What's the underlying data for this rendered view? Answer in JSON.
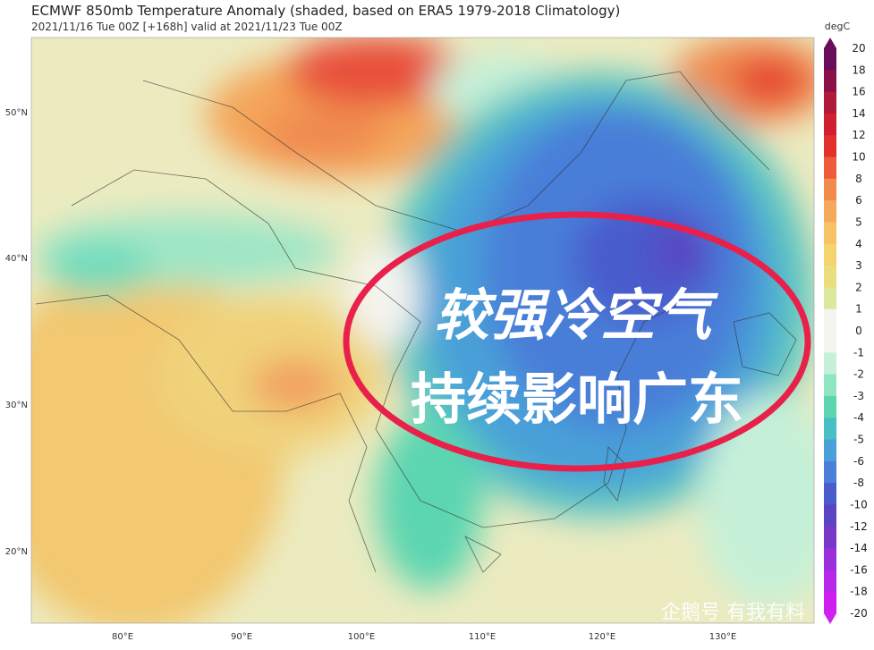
{
  "header": {
    "title": "ECMWF 850mb Temperature Anomaly (shaded, based on ERA5 1979-2018 Climatology)",
    "subtitle": "2021/11/16 Tue 00Z [+168h] valid at 2021/11/23 Tue 00Z"
  },
  "map": {
    "lat_labels": [
      "50°N",
      "40°N",
      "30°N",
      "20°N"
    ],
    "lon_labels": [
      "80°E",
      "90°E",
      "100°E",
      "110°E",
      "120°E",
      "130°E"
    ]
  },
  "colorbar": {
    "unit": "degC",
    "labels": [
      "20",
      "18",
      "16",
      "14",
      "12",
      "10",
      "8",
      "6",
      "5",
      "4",
      "3",
      "2",
      "1",
      "0",
      "-1",
      "-2",
      "-3",
      "-4",
      "-5",
      "-6",
      "-8",
      "-10",
      "-12",
      "-14",
      "-16",
      "-18",
      "-20"
    ],
    "colors": [
      "#6a0c5c",
      "#8b1048",
      "#b01a3a",
      "#d02030",
      "#e4302a",
      "#ef5a3a",
      "#f28a4e",
      "#f5a95c",
      "#f7c165",
      "#f5d470",
      "#eadf7c",
      "#dde89a",
      "#f4f4f0",
      "#f4f4f0",
      "#c6f0d8",
      "#8fe6c0",
      "#5cd6b0",
      "#48bfc4",
      "#4aa0d8",
      "#4a7ed8",
      "#4a5ccc",
      "#5a44c0",
      "#7a38c8",
      "#9a30d8",
      "#b828e8",
      "#d020f0"
    ]
  },
  "overlay": {
    "line1": "较强冷空气",
    "line2": "持续影响广东",
    "watermark": "企鹅号 有我有料"
  }
}
